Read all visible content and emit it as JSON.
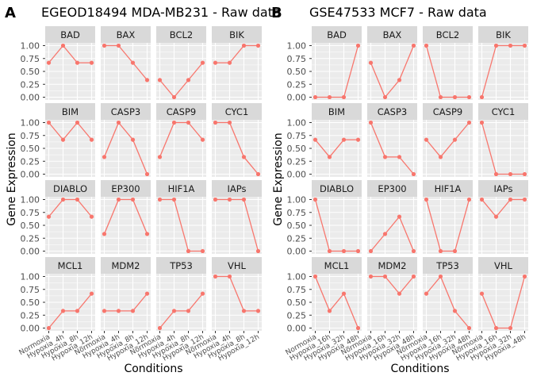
{
  "series_color": "#f8766d",
  "chart_data": [
    {
      "type": "line",
      "letter": "A",
      "title": "EGEOD18494 MDA-MB231 - Raw data",
      "xlabel": "Conditions",
      "ylabel": "Gene Expression",
      "categories": [
        "Normoxia",
        "Hypoxia_4h",
        "Hypoxia_8h",
        "Hypoxia_12h"
      ],
      "ylim": [
        0,
        1
      ],
      "yticks": [
        "0.00",
        "0.25",
        "0.50",
        "0.75",
        "1.00"
      ],
      "facets": [
        {
          "gene": "BAD",
          "values": [
            0.667,
            1,
            0.667,
            0.667
          ]
        },
        {
          "gene": "BAX",
          "values": [
            1,
            1,
            0.667,
            0.333
          ]
        },
        {
          "gene": "BCL2",
          "values": [
            0.333,
            0,
            0.333,
            0.667
          ]
        },
        {
          "gene": "BIK",
          "values": [
            0.667,
            0.667,
            1,
            1
          ]
        },
        {
          "gene": "BIM",
          "values": [
            1,
            0.667,
            1,
            0.667
          ]
        },
        {
          "gene": "CASP3",
          "values": [
            0.333,
            1,
            0.667,
            0
          ]
        },
        {
          "gene": "CASP9",
          "values": [
            0.333,
            1,
            1,
            0.667
          ]
        },
        {
          "gene": "CYC1",
          "values": [
            1,
            1,
            0.333,
            0
          ]
        },
        {
          "gene": "DIABLO",
          "values": [
            0.667,
            1,
            1,
            0.667
          ]
        },
        {
          "gene": "EP300",
          "values": [
            0.333,
            1,
            1,
            0.333
          ]
        },
        {
          "gene": "HIF1A",
          "values": [
            1,
            1,
            0,
            0
          ]
        },
        {
          "gene": "IAPs",
          "values": [
            1,
            1,
            1,
            0
          ]
        },
        {
          "gene": "MCL1",
          "values": [
            0,
            0.333,
            0.333,
            0.667
          ]
        },
        {
          "gene": "MDM2",
          "values": [
            0.333,
            0.333,
            0.333,
            0.667
          ]
        },
        {
          "gene": "TP53",
          "values": [
            0,
            0.333,
            0.333,
            0.667
          ]
        },
        {
          "gene": "VHL",
          "values": [
            1,
            1,
            0.333,
            0.333
          ]
        }
      ]
    },
    {
      "type": "line",
      "letter": "B",
      "title": "GSE47533 MCF7 - Raw data",
      "xlabel": "Conditions",
      "ylabel": "Gene Expression",
      "categories": [
        "Normoxia",
        "Hypoxia_16h",
        "Hypoxia_32h",
        "Hypoxia_48h"
      ],
      "ylim": [
        0,
        1
      ],
      "yticks": [
        "0.00",
        "0.25",
        "0.50",
        "0.75",
        "1.00"
      ],
      "facets": [
        {
          "gene": "BAD",
          "values": [
            0,
            0,
            0,
            1
          ]
        },
        {
          "gene": "BAX",
          "values": [
            0.667,
            0,
            0.333,
            1
          ]
        },
        {
          "gene": "BCL2",
          "values": [
            1,
            0,
            0,
            0
          ]
        },
        {
          "gene": "BIK",
          "values": [
            0,
            1,
            1,
            1
          ]
        },
        {
          "gene": "BIM",
          "values": [
            0.667,
            0.333,
            0.667,
            0.667
          ]
        },
        {
          "gene": "CASP3",
          "values": [
            1,
            0.333,
            0.333,
            0
          ]
        },
        {
          "gene": "CASP9",
          "values": [
            0.667,
            0.333,
            0.667,
            1
          ]
        },
        {
          "gene": "CYC1",
          "values": [
            1,
            0,
            0,
            0
          ]
        },
        {
          "gene": "DIABLO",
          "values": [
            1,
            0,
            0,
            0
          ]
        },
        {
          "gene": "EP300",
          "values": [
            0,
            0.333,
            0.667,
            0
          ]
        },
        {
          "gene": "HIF1A",
          "values": [
            1,
            0,
            0,
            1
          ]
        },
        {
          "gene": "IAPs",
          "values": [
            1,
            0.667,
            1,
            1
          ]
        },
        {
          "gene": "MCL1",
          "values": [
            1,
            0.333,
            0.667,
            0
          ]
        },
        {
          "gene": "MDM2",
          "values": [
            1,
            1,
            0.667,
            1
          ]
        },
        {
          "gene": "TP53",
          "values": [
            0.667,
            1,
            0.333,
            0
          ]
        },
        {
          "gene": "VHL",
          "values": [
            0.667,
            0,
            0,
            1
          ]
        }
      ]
    }
  ]
}
